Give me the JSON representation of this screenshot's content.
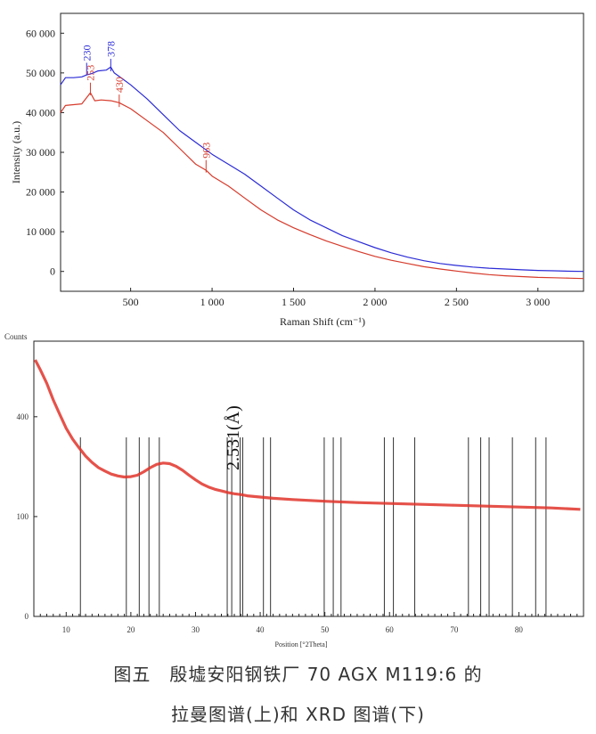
{
  "figure": {
    "caption_line1": "图五　殷墟安阳钢铁厂 70 AGX M119:6 的",
    "caption_line2": "拉曼图谱(上)和 XRD 图谱(下)"
  },
  "chart_data": [
    {
      "type": "line",
      "title": "",
      "xlabel": "Raman Shift (cm⁻¹)",
      "ylabel": "Intensity (a.u.)",
      "xlim": [
        70,
        3280
      ],
      "ylim": [
        -5000,
        65000
      ],
      "x_ticks": [
        500,
        1000,
        1500,
        2000,
        2500,
        3000
      ],
      "x_tick_labels": [
        "500",
        "1 000",
        "1 500",
        "2 000",
        "2 500",
        "3 000"
      ],
      "y_ticks": [
        0,
        10000,
        20000,
        30000,
        40000,
        50000,
        60000
      ],
      "y_tick_labels": [
        "0",
        "10 000",
        "20 000",
        "30 000",
        "40 000",
        "50 000",
        "60 000"
      ],
      "grid": false,
      "series": [
        {
          "color": "#2b2bd6",
          "points": [
            [
              70,
              47000
            ],
            [
              100,
              48800
            ],
            [
              150,
              48800
            ],
            [
              200,
              49000
            ],
            [
              230,
              49500
            ],
            [
              260,
              49800
            ],
            [
              300,
              50500
            ],
            [
              350,
              50700
            ],
            [
              378,
              51500
            ],
            [
              400,
              50000
            ],
            [
              450,
              48500
            ],
            [
              500,
              47000
            ],
            [
              600,
              43500
            ],
            [
              700,
              39500
            ],
            [
              800,
              35500
            ],
            [
              900,
              32500
            ],
            [
              1000,
              29500
            ],
            [
              1100,
              27000
            ],
            [
              1200,
              24500
            ],
            [
              1300,
              21500
            ],
            [
              1400,
              18500
            ],
            [
              1500,
              15500
            ],
            [
              1600,
              13000
            ],
            [
              1700,
              11000
            ],
            [
              1800,
              9000
            ],
            [
              1900,
              7500
            ],
            [
              2000,
              6000
            ],
            [
              2100,
              4700
            ],
            [
              2200,
              3600
            ],
            [
              2300,
              2700
            ],
            [
              2400,
              2000
            ],
            [
              2500,
              1500
            ],
            [
              2600,
              1100
            ],
            [
              2700,
              800
            ],
            [
              2800,
              600
            ],
            [
              2900,
              400
            ],
            [
              3000,
              250
            ],
            [
              3100,
              150
            ],
            [
              3200,
              50
            ],
            [
              3280,
              0
            ]
          ]
        },
        {
          "color": "#d63a2b",
          "points": [
            [
              70,
              40000
            ],
            [
              100,
              41800
            ],
            [
              150,
              42000
            ],
            [
              200,
              42200
            ],
            [
              253,
              45000
            ],
            [
              280,
              43000
            ],
            [
              320,
              43200
            ],
            [
              380,
              43000
            ],
            [
              430,
              42500
            ],
            [
              500,
              41000
            ],
            [
              600,
              38000
            ],
            [
              700,
              35000
            ],
            [
              800,
              31000
            ],
            [
              900,
              27000
            ],
            [
              963,
              25500
            ],
            [
              1000,
              24000
            ],
            [
              1100,
              21500
            ],
            [
              1200,
              18500
            ],
            [
              1300,
              15500
            ],
            [
              1400,
              13000
            ],
            [
              1500,
              11000
            ],
            [
              1600,
              9300
            ],
            [
              1700,
              7700
            ],
            [
              1800,
              6300
            ],
            [
              1900,
              5000
            ],
            [
              2000,
              3800
            ],
            [
              2100,
              2800
            ],
            [
              2200,
              2000
            ],
            [
              2300,
              1200
            ],
            [
              2400,
              600
            ],
            [
              2500,
              100
            ],
            [
              2600,
              -400
            ],
            [
              2700,
              -800
            ],
            [
              2800,
              -1100
            ],
            [
              2900,
              -1300
            ],
            [
              3000,
              -1500
            ],
            [
              3100,
              -1600
            ],
            [
              3200,
              -1700
            ],
            [
              3280,
              -1800
            ]
          ]
        }
      ],
      "annotations": [
        {
          "label": "230",
          "x": 230,
          "y": 53000,
          "color": "#2b2bd6"
        },
        {
          "label": "253",
          "x": 253,
          "y": 48000,
          "color": "#d63a2b"
        },
        {
          "label": "378",
          "x": 378,
          "y": 54000,
          "color": "#2b2bd6"
        },
        {
          "label": "430",
          "x": 430,
          "y": 45000,
          "color": "#d63a2b"
        },
        {
          "label": "963",
          "x": 963,
          "y": 28500,
          "color": "#d63a2b"
        }
      ]
    },
    {
      "type": "line",
      "title": "",
      "ylabel": "Counts",
      "xlabel": "Position [°2Theta]",
      "xlim": [
        5,
        90
      ],
      "y_scale": "sqrt",
      "ylim": [
        0,
        760
      ],
      "x_ticks": [
        10,
        20,
        30,
        40,
        50,
        60,
        70,
        80
      ],
      "x_tick_labels": [
        "10",
        "20",
        "30",
        "40",
        "50",
        "60",
        "70",
        "80"
      ],
      "y_ticks": [
        0,
        100,
        400
      ],
      "y_tick_labels": [
        "0",
        "100",
        "400"
      ],
      "grid": false,
      "series": [
        {
          "color": "#e0342a",
          "points": [
            [
              5.2,
              660
            ],
            [
              6,
              610
            ],
            [
              7,
              545
            ],
            [
              8,
              470
            ],
            [
              9,
              410
            ],
            [
              10,
              355
            ],
            [
              11,
              315
            ],
            [
              12,
              285
            ],
            [
              13,
              258
            ],
            [
              14,
              238
            ],
            [
              15,
              222
            ],
            [
              16,
              212
            ],
            [
              17,
              203
            ],
            [
              18,
              198
            ],
            [
              19,
              195
            ],
            [
              20,
              196
            ],
            [
              21,
              200
            ],
            [
              22,
              210
            ],
            [
              23,
              222
            ],
            [
              24,
              232
            ],
            [
              25,
              236
            ],
            [
              26,
              234
            ],
            [
              27,
              226
            ],
            [
              28,
              214
            ],
            [
              29,
              200
            ],
            [
              30,
              187
            ],
            [
              31,
              176
            ],
            [
              32,
              168
            ],
            [
              33,
              162
            ],
            [
              34,
              158
            ],
            [
              35,
              154
            ],
            [
              36,
              151
            ],
            [
              37,
              149
            ],
            [
              38,
              146
            ],
            [
              40,
              143
            ],
            [
              42,
              140
            ],
            [
              45,
              137
            ],
            [
              50,
              133
            ],
            [
              55,
              130
            ],
            [
              60,
              128
            ],
            [
              65,
              126
            ],
            [
              70,
              124
            ],
            [
              75,
              122
            ],
            [
              80,
              120
            ],
            [
              85,
              118
            ],
            [
              89.5,
              115
            ]
          ]
        }
      ],
      "reference_lines_2theta": [
        12.2,
        19.3,
        21.3,
        22.8,
        24.4,
        34.9,
        35.6,
        36.9,
        37.3,
        40.5,
        41.6,
        49.9,
        51.3,
        52.5,
        59.2,
        60.6,
        63.9,
        72.2,
        74.1,
        75.4,
        79.0,
        82.6,
        84.2
      ],
      "annotations": [
        {
          "label": "2.531(Å)",
          "x": 35.6
        }
      ]
    }
  ]
}
